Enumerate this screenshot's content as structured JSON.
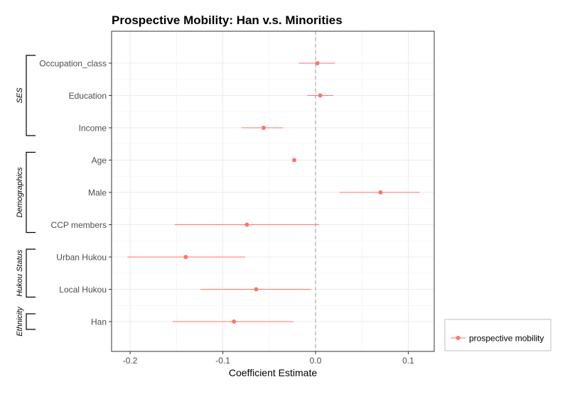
{
  "chart_data": {
    "type": "scatter",
    "subtype": "coefficient-plot-with-confidence-intervals",
    "title": "Prospective Mobility: Han v.s. Minorities",
    "xlabel": "Coefficient Estimate",
    "ylabel": "",
    "xlim": [
      -0.22,
      0.128
    ],
    "x_ticks": [
      -0.2,
      -0.1,
      0.0,
      0.1
    ],
    "x_tick_labels": [
      "-0.2",
      "-0.1",
      "0.0",
      "0.1"
    ],
    "reference_line": {
      "x": 0,
      "style": "dashed"
    },
    "grid": true,
    "legend": {
      "position": "bottom-right",
      "entries": [
        "prospective mobility"
      ]
    },
    "series": [
      {
        "name": "prospective mobility",
        "color": "#F8766D",
        "points": [
          {
            "label": "Occupation_class",
            "estimate": 0.002,
            "ci_low": -0.018,
            "ci_high": 0.021
          },
          {
            "label": "Education",
            "estimate": 0.005,
            "ci_low": -0.009,
            "ci_high": 0.019
          },
          {
            "label": "Income",
            "estimate": -0.056,
            "ci_low": -0.08,
            "ci_high": -0.035
          },
          {
            "label": "Age",
            "estimate": -0.023,
            "ci_low": -0.025,
            "ci_high": -0.021
          },
          {
            "label": "Male",
            "estimate": 0.07,
            "ci_low": 0.026,
            "ci_high": 0.112
          },
          {
            "label": "CCP members",
            "estimate": -0.074,
            "ci_low": -0.152,
            "ci_high": 0.004
          },
          {
            "label": "Urban Hukou",
            "estimate": -0.14,
            "ci_low": -0.203,
            "ci_high": -0.076
          },
          {
            "label": "Local Hukou",
            "estimate": -0.064,
            "ci_low": -0.124,
            "ci_high": -0.005
          },
          {
            "label": "Han",
            "estimate": -0.088,
            "ci_low": -0.154,
            "ci_high": -0.024
          }
        ]
      }
    ],
    "groups": [
      {
        "name": "SES",
        "members": [
          "Occupation_class",
          "Education",
          "Income"
        ]
      },
      {
        "name": "Demographics",
        "members": [
          "Age",
          "Male",
          "CCP members"
        ]
      },
      {
        "name": "Hukou Status",
        "members": [
          "Urban Hukou",
          "Local Hukou"
        ]
      },
      {
        "name": "Ethnicity",
        "members": [
          "Han"
        ]
      }
    ]
  }
}
